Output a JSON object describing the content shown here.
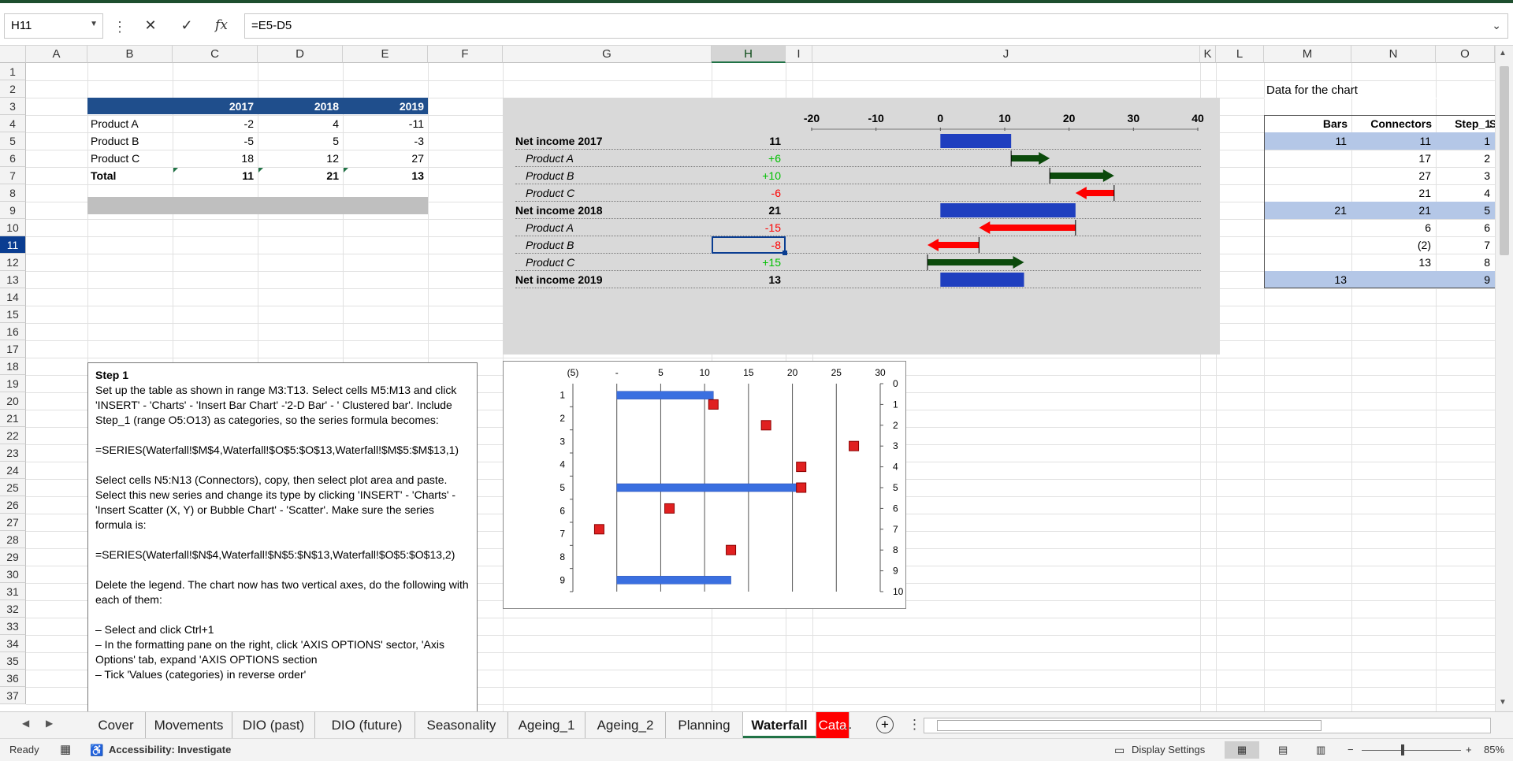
{
  "formula_bar": {
    "name_box": "H11",
    "formula": "=E5-D5",
    "fx_label": "fx"
  },
  "columns": [
    "A",
    "B",
    "C",
    "D",
    "E",
    "F",
    "G",
    "H",
    "I",
    "J",
    "K",
    "L",
    "M",
    "N",
    "O"
  ],
  "rows": [
    "1",
    "2",
    "3",
    "4",
    "5",
    "6",
    "7",
    "8",
    "9",
    "10",
    "11",
    "12",
    "13",
    "14",
    "15",
    "16",
    "17",
    "18",
    "19",
    "20",
    "21",
    "22",
    "23",
    "24",
    "25",
    "26",
    "27",
    "28",
    "29",
    "30",
    "31",
    "32",
    "33",
    "34",
    "35",
    "36",
    "37"
  ],
  "source_table": {
    "headers": [
      "2017",
      "2018",
      "2019"
    ],
    "rows": [
      {
        "label": "Product A",
        "values": [
          "-2",
          "4",
          "-11"
        ]
      },
      {
        "label": "Product B",
        "values": [
          "-5",
          "5",
          "-3"
        ]
      },
      {
        "label": "Product C",
        "values": [
          "18",
          "12",
          "27"
        ]
      },
      {
        "label": "Total",
        "values": [
          "11",
          "21",
          "13"
        ]
      }
    ]
  },
  "waterfall_table": {
    "rows": [
      {
        "label": "Net income 2017",
        "value": "11",
        "kind": "total"
      },
      {
        "label": "Product A",
        "value": "+6",
        "kind": "pos"
      },
      {
        "label": "Product B",
        "value": "+10",
        "kind": "pos"
      },
      {
        "label": "Product C",
        "value": "-6",
        "kind": "neg"
      },
      {
        "label": "Net income 2018",
        "value": "21",
        "kind": "total"
      },
      {
        "label": "Product A",
        "value": "-15",
        "kind": "neg"
      },
      {
        "label": "Product B",
        "value": "-8",
        "kind": "neg"
      },
      {
        "label": "Product C",
        "value": "+15",
        "kind": "pos"
      },
      {
        "label": "Net income 2019",
        "value": "13",
        "kind": "total"
      }
    ],
    "axis_ticks": [
      "-20",
      "-10",
      "0",
      "10",
      "20",
      "30",
      "40"
    ]
  },
  "chart_data": [
    {
      "type": "bar",
      "ylim": [
        -20,
        40
      ],
      "categories": [
        "Net income 2017",
        "Product A",
        "Product B",
        "Product C",
        "Net income 2018",
        "Product A",
        "Product B",
        "Product C",
        "Net income 2019"
      ],
      "series": [
        {
          "values": [
            11,
            6,
            10,
            -6,
            21,
            -15,
            -8,
            15,
            13
          ]
        }
      ]
    },
    {
      "type": "bar",
      "xlim": [
        -5,
        30
      ],
      "x_ticks": [
        "(5)",
        "-",
        "5",
        "10",
        "15",
        "20",
        "25",
        "30"
      ],
      "categories": [
        "1",
        "2",
        "3",
        "4",
        "5",
        "6",
        "7",
        "8",
        "9"
      ],
      "right_ticks": [
        "0",
        "1",
        "2",
        "3",
        "4",
        "5",
        "6",
        "7",
        "8",
        "9",
        "10"
      ],
      "series": [
        {
          "values": [
            11,
            null,
            null,
            null,
            21,
            null,
            null,
            null,
            13
          ]
        },
        {
          "points": [
            [
              11,
              1
            ],
            [
              17,
              2
            ],
            [
              27,
              3
            ],
            [
              21,
              4
            ],
            [
              21,
              5
            ],
            [
              6,
              6
            ],
            [
              -2,
              7
            ],
            [
              13,
              8
            ]
          ]
        }
      ]
    }
  ],
  "chart_side_table": {
    "title": "Data for the chart",
    "headers": [
      "Bars",
      "Connectors",
      "Step_1",
      "S"
    ],
    "rows": [
      [
        "11",
        "11",
        "1"
      ],
      [
        "",
        "17",
        "2"
      ],
      [
        "",
        "27",
        "3"
      ],
      [
        "",
        "21",
        "4"
      ],
      [
        "21",
        "21",
        "5"
      ],
      [
        "",
        "6",
        "6"
      ],
      [
        "",
        "(2)",
        "7"
      ],
      [
        "",
        "13",
        "8"
      ],
      [
        "13",
        "",
        "9"
      ]
    ]
  },
  "textbox": {
    "lines": [
      "Step 1",
      "Set up the table as shown in range M3:T13. Select cells M5:M13 and click 'INSERT' - 'Charts' - 'Insert Bar Chart' -'2-D Bar' - ' Clustered bar'. Include Step_1 (range O5:O13) as categories, so the series formula becomes:",
      "",
      "=SERIES(Waterfall!$M$4,Waterfall!$O$5:$O$13,Waterfall!$M$5:$M$13,1)",
      "",
      "Select cells N5:N13 (Connectors), copy, then select plot area and paste. Select this new series and change its type by clicking 'INSERT' - 'Charts' - 'Insert Scatter (X, Y) or Bubble Chart' - 'Scatter'. Make sure the series formula is:",
      "",
      "=SERIES(Waterfall!$N$4,Waterfall!$N$5:$N$13,Waterfall!$O$5:$O$13,2)",
      "",
      "Delete the legend. The chart now has two vertical axes, do the following with each of them:",
      "",
      "– Select and click Ctrl+1",
      "– In the formatting pane on the right, click 'AXIS OPTIONS' sector, 'Axis Options' tab, expand 'AXIS OPTIONS section",
      "– Tick 'Values (categories) in reverse order'"
    ]
  },
  "sheet_tabs": [
    "Cover",
    "Movements",
    "DIO (past)",
    "DIO (future)",
    "Seasonality",
    "Ageing_1",
    "Ageing_2",
    "Planning",
    "Waterfall",
    "Cata"
  ],
  "active_tab": "Waterfall",
  "status": {
    "ready": "Ready",
    "accessibility": "Accessibility: Investigate",
    "display_settings": "Display Settings",
    "zoom": "85%"
  },
  "colors": {
    "excel_green": "#217346",
    "header_blue": "#1f4e8c",
    "bar_blue": "#1f3fbf",
    "pos_arrow": "#0b4a0b",
    "neg_arrow": "#ff0000",
    "pos_text": "#00c000",
    "neg_text": "#ff0000"
  }
}
